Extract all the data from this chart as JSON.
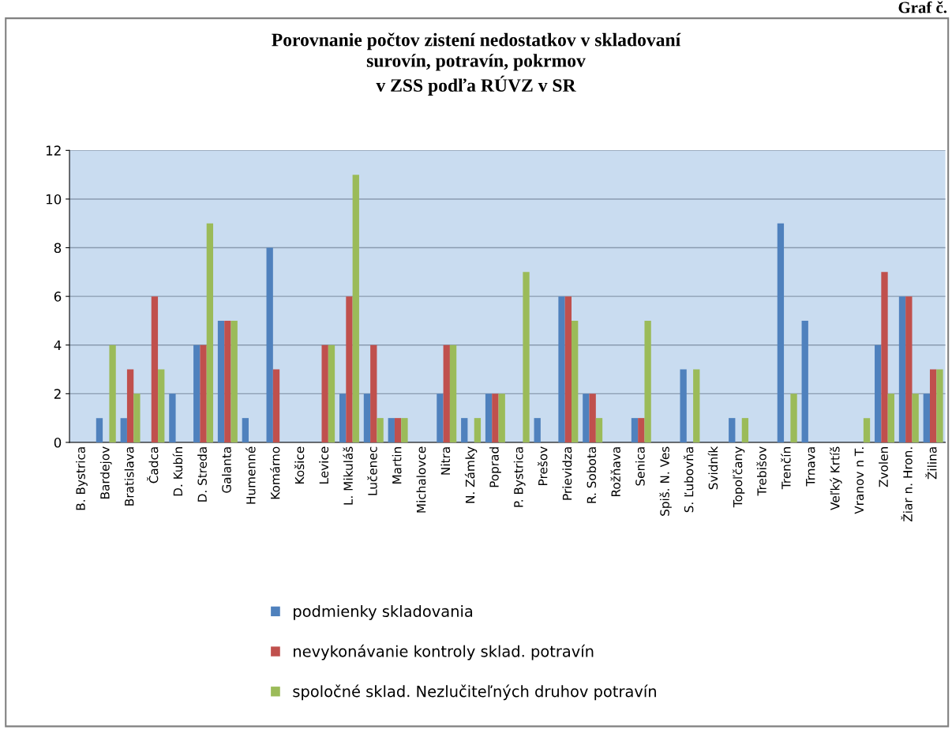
{
  "chart_data": {
    "type": "bar",
    "title": "Porovnanie počtov zistení nedostatkov v skladovaní\nsurovín, potravín, pokrmov\nv ZSS podľa RÚVZ v SR",
    "categories": [
      "B. Bystrica",
      "Bardejov",
      "Bratislava",
      "Čadca",
      "D. Kubín",
      "D. Streda",
      "Galanta",
      "Humenné",
      "Komárno",
      "Košice",
      "Levice",
      "L. Mikuláš",
      "Lučenec",
      "Martin",
      "Michalovce",
      "Nitra",
      "N. Zámky",
      "Poprad",
      "P. Bystrica",
      "Prešov",
      "Prievidza",
      "R. Sobota",
      "Rožňava",
      "Senica",
      "Spiš. N. Ves",
      "S. Ľubovňa",
      "Svidník",
      "Topoľčany",
      "Trebišov",
      "Trenčín",
      "Trnava",
      "Veľký Krtíš",
      "Vranov n T.",
      "Zvolen",
      "Žiar n. Hron.",
      "Žilina"
    ],
    "series": [
      {
        "name": "podmienky skladovania",
        "color": "#4f81bd",
        "values": [
          0,
          1,
          1,
          0,
          2,
          4,
          5,
          1,
          8,
          0,
          0,
          2,
          2,
          1,
          0,
          2,
          1,
          2,
          0,
          1,
          6,
          2,
          0,
          1,
          0,
          3,
          0,
          1,
          0,
          9,
          5,
          0,
          0,
          4,
          6,
          2
        ]
      },
      {
        "name": "nevykonávanie kontroly sklad. potravín",
        "color": "#c0504d",
        "values": [
          0,
          0,
          3,
          6,
          0,
          4,
          5,
          0,
          3,
          0,
          4,
          6,
          4,
          1,
          0,
          4,
          0,
          2,
          0,
          0,
          6,
          2,
          0,
          1,
          0,
          0,
          0,
          0,
          0,
          0,
          0,
          0,
          0,
          7,
          6,
          3
        ]
      },
      {
        "name": "spoločné sklad. Nezlučiteľných druhov potravín",
        "color": "#9bbb59",
        "values": [
          0,
          4,
          2,
          3,
          0,
          9,
          5,
          0,
          0,
          0,
          4,
          11,
          1,
          1,
          0,
          4,
          1,
          2,
          7,
          0,
          5,
          1,
          0,
          5,
          0,
          3,
          0,
          1,
          0,
          2,
          0,
          0,
          1,
          2,
          2,
          3
        ]
      }
    ],
    "ylim": [
      0,
      12
    ],
    "yticks": [
      0,
      2,
      4,
      6,
      8,
      10,
      12
    ],
    "grid": "y",
    "legend": "bottom",
    "annotations": [
      "Graf č."
    ]
  }
}
